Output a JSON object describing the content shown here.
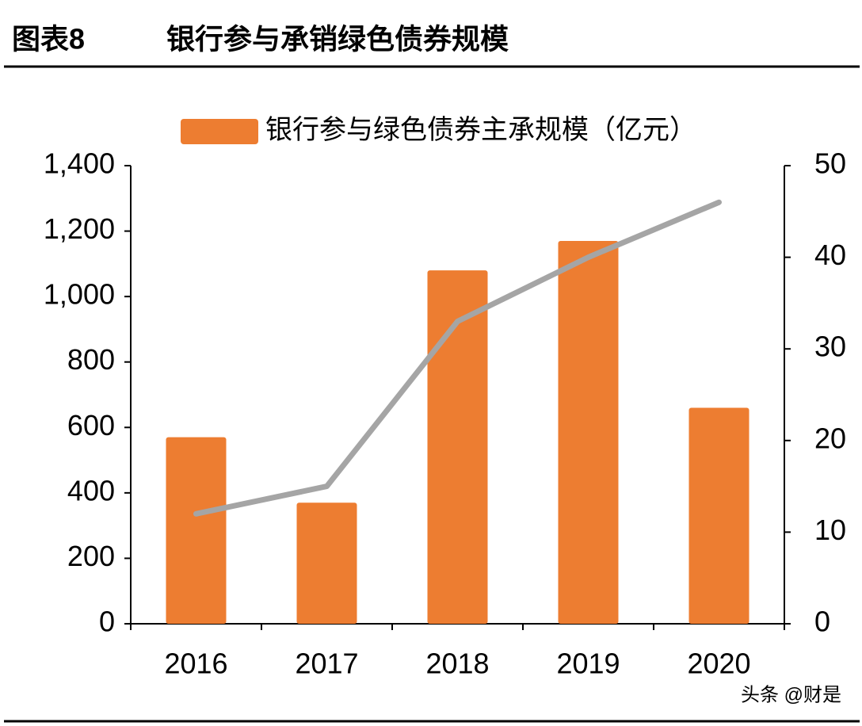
{
  "chart_data": {
    "type": "bar",
    "figure_label": "图表8",
    "title": "银行参与承销绿色债券规模",
    "watermark": "头条 @财是",
    "categories": [
      "2016",
      "2017",
      "2018",
      "2019",
      "2020"
    ],
    "series": [
      {
        "name": "银行参与绿色债券主承规模（亿元）",
        "color": "#ed7d31",
        "values": [
          570,
          370,
          1080,
          1170,
          660
        ]
      },
      {
        "type": "line",
        "axis": "y2",
        "color": "#a5a5a5",
        "values": [
          12,
          15,
          33,
          40,
          46
        ]
      }
    ],
    "ylim": [
      0,
      1400
    ],
    "yticks": [
      0,
      200,
      400,
      600,
      800,
      {
        "value": 1000,
        "label": "1,000"
      },
      {
        "value": 1200,
        "label": "1,200"
      },
      {
        "value": 1400,
        "label": "1,400"
      }
    ],
    "y2lim": [
      0,
      50
    ],
    "y2ticks": [
      0,
      10,
      20,
      30,
      40,
      50
    ],
    "legend": "top"
  }
}
